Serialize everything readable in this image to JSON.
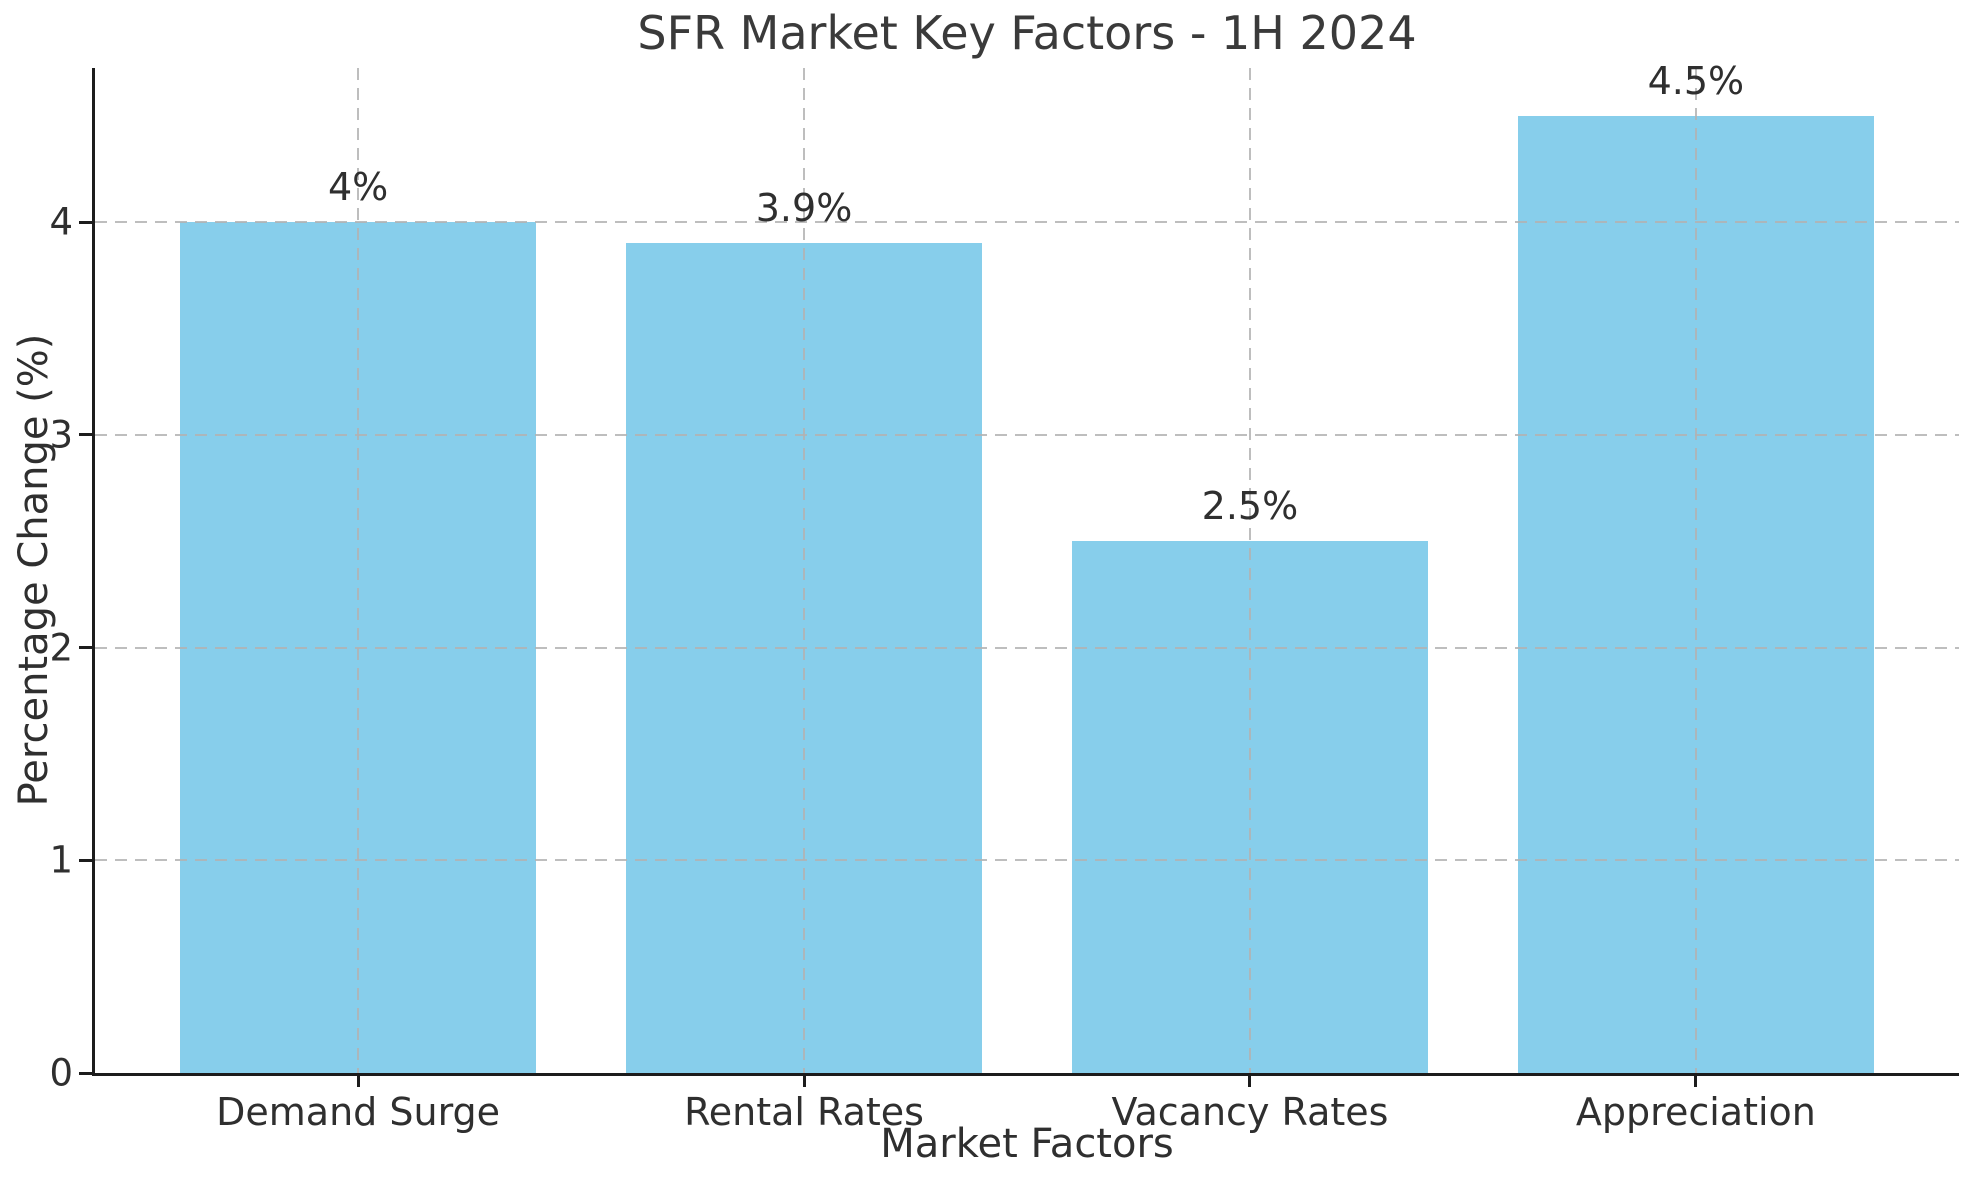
{
  "title": "SFR Market Key Factors - 1H 2024",
  "chart_data": {
    "type": "bar",
    "title": "SFR Market Key Factors - 1H 2024",
    "xlabel": "Market Factors",
    "ylabel": "Percentage Change (%)",
    "categories": [
      "Demand Surge",
      "Rental Rates",
      "Vacancy Rates",
      "Appreciation"
    ],
    "values": [
      4,
      3.9,
      2.5,
      4.5
    ],
    "bar_labels": [
      "4%",
      "3.9%",
      "2.5%",
      "4.5%"
    ],
    "yticks": [
      0,
      1,
      2,
      3,
      4
    ],
    "ylim": [
      0,
      4.725
    ],
    "xlim": [
      -0.59,
      3.59
    ],
    "bar_width_units": 0.8,
    "grid": "dashed, horizontal and vertical, drawn over bars",
    "legend": "none",
    "bar_color": "#87CEEB"
  },
  "colors": {
    "bar": "#87CEEB",
    "text": "#2f2f2f",
    "spine": "#1c1c1c",
    "grid": "#b2b2b2",
    "background": "#ffffff"
  }
}
